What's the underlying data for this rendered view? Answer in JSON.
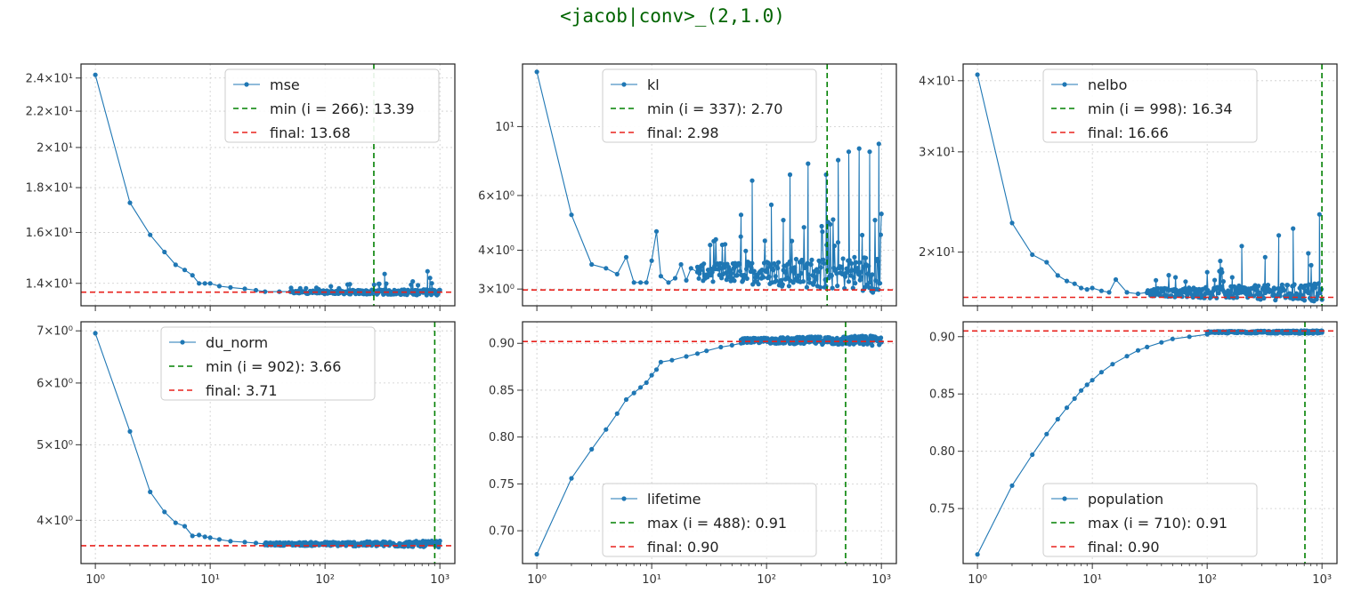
{
  "suptitle": "<jacob|conv>_(2,1.0)",
  "colors": {
    "series": "#1f77b4",
    "min": "#008000",
    "final": "#e8221d",
    "grid": "#cccccc"
  },
  "chart_data": [
    {
      "type": "line",
      "name": "mse",
      "yscale": "log",
      "xscale": "log",
      "xlim": [
        0.75,
        1350
      ],
      "ylim": [
        13.2,
        24.9
      ],
      "yticks": [
        {
          "v": 14,
          "label": "1.4×10¹"
        },
        {
          "v": 16,
          "label": "1.6×10¹"
        },
        {
          "v": 18,
          "label": "1.8×10¹"
        },
        {
          "v": 20,
          "label": "2×10¹"
        },
        {
          "v": 22,
          "label": "2.2×10¹"
        },
        {
          "v": 24,
          "label": "2.4×10¹"
        }
      ],
      "xticklabels": false,
      "legend": {
        "series": "mse",
        "ref": "min (i = 266): 13.39",
        "final": "final: 13.68",
        "position": "upper-right"
      },
      "ref_x": 266,
      "final_y": 13.68,
      "series_points": [
        [
          1,
          24.2
        ],
        [
          2,
          17.3
        ],
        [
          3,
          15.9
        ],
        [
          4,
          15.2
        ],
        [
          5,
          14.7
        ],
        [
          6,
          14.5
        ],
        [
          7,
          14.3
        ],
        [
          8,
          14.0
        ],
        [
          9,
          14.0
        ],
        [
          10,
          14.0
        ],
        [
          12,
          13.9
        ],
        [
          15,
          13.85
        ],
        [
          20,
          13.8
        ],
        [
          25,
          13.75
        ],
        [
          30,
          13.7
        ],
        [
          40,
          13.7
        ],
        [
          50,
          13.7
        ]
      ],
      "dense": {
        "from": 50,
        "to": 1000,
        "center": 13.68,
        "spread": 0.08,
        "outliers": [
          [
            330,
            14.35
          ],
          [
            780,
            14.45
          ],
          [
            820,
            14.2
          ]
        ]
      }
    },
    {
      "type": "line",
      "name": "kl",
      "yscale": "log",
      "xscale": "log",
      "xlim": [
        0.75,
        1350
      ],
      "ylim": [
        2.65,
        15.9
      ],
      "yticks": [
        {
          "v": 3,
          "label": "3×10⁰"
        },
        {
          "v": 4,
          "label": "4×10⁰"
        },
        {
          "v": 6,
          "label": "6×10⁰"
        },
        {
          "v": 10,
          "label": "10¹"
        }
      ],
      "xticklabels": false,
      "legend": {
        "series": "kl",
        "ref": "min (i = 337): 2.70",
        "final": "final: 2.98",
        "position": "upper-center"
      },
      "ref_x": 337,
      "final_y": 2.98,
      "series_points": [
        [
          1,
          15.0
        ],
        [
          2,
          5.2
        ],
        [
          3,
          3.6
        ],
        [
          4,
          3.5
        ],
        [
          5,
          3.35
        ],
        [
          6,
          3.8
        ],
        [
          7,
          3.15
        ],
        [
          8,
          3.15
        ],
        [
          9,
          3.15
        ],
        [
          10,
          3.7
        ],
        [
          11,
          4.6
        ],
        [
          12,
          3.3
        ],
        [
          14,
          3.15
        ],
        [
          16,
          3.25
        ],
        [
          18,
          3.6
        ],
        [
          20,
          3.2
        ],
        [
          22,
          3.5
        ],
        [
          25,
          3.4
        ]
      ],
      "dense": {
        "from": 25,
        "to": 1000,
        "center": 3.4,
        "spread": 0.35,
        "outliers": [
          [
            75,
            6.7
          ],
          [
            110,
            5.6
          ],
          [
            160,
            7.0
          ],
          [
            230,
            7.6
          ],
          [
            330,
            7.0
          ],
          [
            420,
            7.8
          ],
          [
            520,
            8.3
          ],
          [
            640,
            8.5
          ],
          [
            790,
            8.3
          ],
          [
            950,
            8.8
          ],
          [
            60,
            5.2
          ],
          [
            140,
            5.0
          ]
        ]
      }
    },
    {
      "type": "line",
      "name": "nelbo",
      "yscale": "log",
      "xscale": "log",
      "xlim": [
        0.75,
        1350
      ],
      "ylim": [
        16.1,
        42.8
      ],
      "yticks": [
        {
          "v": 20,
          "label": "2×10¹"
        },
        {
          "v": 30,
          "label": "3×10¹"
        },
        {
          "v": 40,
          "label": "4×10¹"
        }
      ],
      "xticklabels": false,
      "legend": {
        "series": "nelbo",
        "ref": "min (i = 998): 16.34",
        "final": "final: 16.66",
        "position": "upper-center"
      },
      "ref_x": 998,
      "final_y": 16.66,
      "series_points": [
        [
          1,
          41.0
        ],
        [
          2,
          22.5
        ],
        [
          3,
          19.8
        ],
        [
          4,
          19.2
        ],
        [
          5,
          18.2
        ],
        [
          6,
          17.8
        ],
        [
          7,
          17.6
        ],
        [
          8,
          17.3
        ],
        [
          9,
          17.2
        ],
        [
          10,
          17.3
        ],
        [
          12,
          17.1
        ],
        [
          14,
          17.0
        ],
        [
          16,
          17.9
        ],
        [
          20,
          17.0
        ],
        [
          25,
          16.9
        ],
        [
          30,
          17.0
        ]
      ],
      "dense": {
        "from": 30,
        "to": 1000,
        "center": 17.0,
        "spread": 0.45,
        "outliers": [
          [
            200,
            20.5
          ],
          [
            420,
            21.4
          ],
          [
            560,
            22.0
          ],
          [
            950,
            23.3
          ],
          [
            130,
            19.3
          ],
          [
            320,
            19.6
          ],
          [
            760,
            19.9
          ]
        ]
      }
    },
    {
      "type": "line",
      "name": "du_norm",
      "yscale": "log",
      "xscale": "log",
      "xlim": [
        0.75,
        1350
      ],
      "ylim": [
        3.52,
        7.19
      ],
      "yticks": [
        {
          "v": 4,
          "label": "4×10⁰"
        },
        {
          "v": 5,
          "label": "5×10⁰"
        },
        {
          "v": 6,
          "label": "6×10⁰"
        },
        {
          "v": 7,
          "label": "7×10⁰"
        }
      ],
      "xticklabels": true,
      "xticks": [
        {
          "v": 1,
          "label": "10⁰"
        },
        {
          "v": 10,
          "label": "10¹"
        },
        {
          "v": 100,
          "label": "10²"
        },
        {
          "v": 1000,
          "label": "10³"
        }
      ],
      "legend": {
        "series": "du_norm",
        "ref": "min (i = 902): 3.66",
        "final": "final: 3.71",
        "position": "upper-center"
      },
      "ref_x": 902,
      "final_y": 3.71,
      "series_points": [
        [
          1,
          6.95
        ],
        [
          2,
          5.2
        ],
        [
          3,
          4.35
        ],
        [
          4,
          4.1
        ],
        [
          5,
          3.97
        ],
        [
          6,
          3.93
        ],
        [
          7,
          3.82
        ],
        [
          8,
          3.83
        ],
        [
          9,
          3.81
        ],
        [
          10,
          3.8
        ],
        [
          12,
          3.78
        ],
        [
          15,
          3.76
        ],
        [
          20,
          3.75
        ],
        [
          25,
          3.74
        ],
        [
          30,
          3.73
        ]
      ],
      "dense": {
        "from": 30,
        "to": 1000,
        "center": 3.73,
        "spread": 0.025,
        "outliers": []
      }
    },
    {
      "type": "line",
      "name": "lifetime",
      "yscale": "linear",
      "xscale": "log",
      "xlim": [
        0.75,
        1350
      ],
      "ylim": [
        0.665,
        0.923
      ],
      "yticks": [
        {
          "v": 0.7,
          "label": "0.70"
        },
        {
          "v": 0.75,
          "label": "0.75"
        },
        {
          "v": 0.8,
          "label": "0.80"
        },
        {
          "v": 0.85,
          "label": "0.85"
        },
        {
          "v": 0.9,
          "label": "0.90"
        }
      ],
      "xticklabels": true,
      "xticks": [
        {
          "v": 1,
          "label": "10⁰"
        },
        {
          "v": 10,
          "label": "10¹"
        },
        {
          "v": 100,
          "label": "10²"
        },
        {
          "v": 1000,
          "label": "10³"
        }
      ],
      "legend": {
        "series": "lifetime",
        "ref": "max (i = 488): 0.91",
        "final": "final: 0.90",
        "position": "lower-center"
      },
      "ref_x": 488,
      "final_y": 0.902,
      "series_points": [
        [
          1,
          0.675
        ],
        [
          2,
          0.756
        ],
        [
          3,
          0.787
        ],
        [
          4,
          0.808
        ],
        [
          5,
          0.825
        ],
        [
          6,
          0.84
        ],
        [
          7,
          0.847
        ],
        [
          8,
          0.853
        ],
        [
          9,
          0.858
        ],
        [
          10,
          0.866
        ],
        [
          11,
          0.872
        ],
        [
          12,
          0.88
        ],
        [
          15,
          0.882
        ],
        [
          20,
          0.886
        ],
        [
          25,
          0.889
        ],
        [
          30,
          0.892
        ],
        [
          40,
          0.896
        ],
        [
          50,
          0.898
        ],
        [
          60,
          0.9
        ]
      ],
      "dense": {
        "from": 60,
        "to": 1000,
        "center": 0.903,
        "spread": 0.004,
        "outliers": []
      }
    },
    {
      "type": "line",
      "name": "population",
      "yscale": "linear",
      "xscale": "log",
      "xlim": [
        0.75,
        1350
      ],
      "ylim": [
        0.702,
        0.913
      ],
      "yticks": [
        {
          "v": 0.75,
          "label": "0.75"
        },
        {
          "v": 0.8,
          "label": "0.80"
        },
        {
          "v": 0.85,
          "label": "0.85"
        },
        {
          "v": 0.9,
          "label": "0.90"
        }
      ],
      "xticklabels": true,
      "xticks": [
        {
          "v": 1,
          "label": "10⁰"
        },
        {
          "v": 10,
          "label": "10¹"
        },
        {
          "v": 100,
          "label": "10²"
        },
        {
          "v": 1000,
          "label": "10³"
        }
      ],
      "legend": {
        "series": "population",
        "ref": "max (i = 710): 0.91",
        "final": "final: 0.90",
        "position": "lower-center"
      },
      "ref_x": 710,
      "final_y": 0.905,
      "series_points": [
        [
          1,
          0.71
        ],
        [
          2,
          0.77
        ],
        [
          3,
          0.797
        ],
        [
          4,
          0.815
        ],
        [
          5,
          0.828
        ],
        [
          6,
          0.838
        ],
        [
          7,
          0.846
        ],
        [
          8,
          0.853
        ],
        [
          9,
          0.858
        ],
        [
          10,
          0.862
        ],
        [
          12,
          0.869
        ],
        [
          15,
          0.876
        ],
        [
          20,
          0.883
        ],
        [
          25,
          0.888
        ],
        [
          30,
          0.891
        ],
        [
          40,
          0.895
        ],
        [
          50,
          0.898
        ],
        [
          70,
          0.9
        ],
        [
          100,
          0.902
        ],
        [
          150,
          0.903
        ],
        [
          200,
          0.904
        ],
        [
          300,
          0.904
        ],
        [
          500,
          0.905
        ],
        [
          700,
          0.905
        ],
        [
          1000,
          0.905
        ]
      ],
      "dense": {
        "from": 100,
        "to": 1000,
        "center": 0.904,
        "spread": 0.001,
        "outliers": []
      }
    }
  ]
}
